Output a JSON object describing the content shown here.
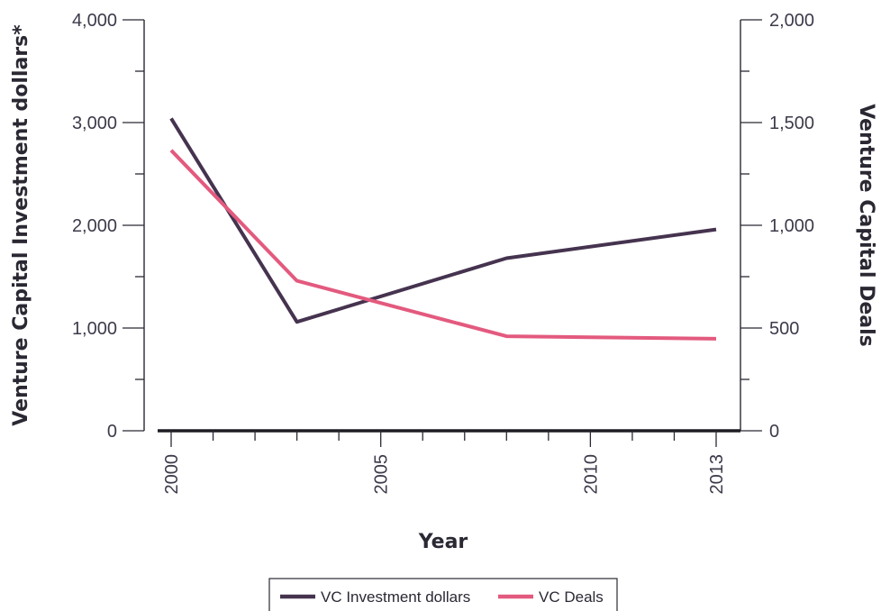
{
  "chart_data": {
    "type": "line",
    "x": [
      2000,
      2003,
      2008,
      2013
    ],
    "x_ticks": [
      "2000",
      "2005",
      "2010",
      "2013"
    ],
    "xlabel": "Year",
    "ylabel_left": "Venture Capital Investment dollars*",
    "ylabel_right": "Venture Capital Deals",
    "ylim_left": [
      0,
      4000
    ],
    "ylim_right": [
      0,
      2000
    ],
    "y_ticks_left": [
      "0",
      "1,000",
      "2,000",
      "3,000",
      "4,000"
    ],
    "y_ticks_right": [
      "0",
      "500",
      "1,000",
      "1,500",
      "2,000"
    ],
    "xlim": [
      1999.7,
      2013
    ],
    "series": [
      {
        "name": "VC Investment dollars",
        "axis": "left",
        "color": "#45334f",
        "values": [
          3040,
          1060,
          1680,
          1960
        ]
      },
      {
        "name": "VC Deals",
        "axis": "right",
        "color": "#e35a7e",
        "values": [
          1365,
          730,
          460,
          448
        ]
      }
    ],
    "legend": "bottom"
  }
}
